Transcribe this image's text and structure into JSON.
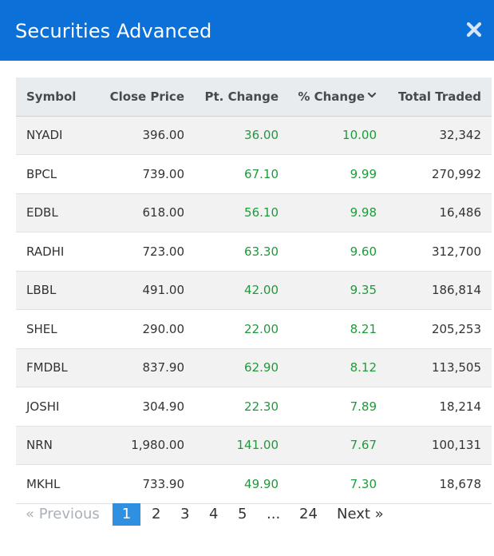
{
  "modal": {
    "title": "Securities Advanced",
    "close_icon": "close-icon"
  },
  "table": {
    "columns": {
      "symbol": "Symbol",
      "close_price": "Close Price",
      "pt_change": "Pt. Change",
      "pct_change": "% Change",
      "total_traded": "Total Traded"
    },
    "sort": {
      "column": "pct_change",
      "direction": "descending",
      "icon": "chevron-down-icon"
    },
    "rows": [
      {
        "symbol": "NYADI",
        "close_price": "396.00",
        "pt_change": "36.00",
        "pct_change": "10.00",
        "total_traded": "32,342"
      },
      {
        "symbol": "BPCL",
        "close_price": "739.00",
        "pt_change": "67.10",
        "pct_change": "9.99",
        "total_traded": "270,992"
      },
      {
        "symbol": "EDBL",
        "close_price": "618.00",
        "pt_change": "56.10",
        "pct_change": "9.98",
        "total_traded": "16,486"
      },
      {
        "symbol": "RADHI",
        "close_price": "723.00",
        "pt_change": "63.30",
        "pct_change": "9.60",
        "total_traded": "312,700"
      },
      {
        "symbol": "LBBL",
        "close_price": "491.00",
        "pt_change": "42.00",
        "pct_change": "9.35",
        "total_traded": "186,814"
      },
      {
        "symbol": "SHEL",
        "close_price": "290.00",
        "pt_change": "22.00",
        "pct_change": "8.21",
        "total_traded": "205,253"
      },
      {
        "symbol": "FMDBL",
        "close_price": "837.90",
        "pt_change": "62.90",
        "pct_change": "8.12",
        "total_traded": "113,505"
      },
      {
        "symbol": "JOSHI",
        "close_price": "304.90",
        "pt_change": "22.30",
        "pct_change": "7.89",
        "total_traded": "18,214"
      },
      {
        "symbol": "NRN",
        "close_price": "1,980.00",
        "pt_change": "141.00",
        "pct_change": "7.67",
        "total_traded": "100,131"
      },
      {
        "symbol": "MKHL",
        "close_price": "733.90",
        "pt_change": "49.90",
        "pct_change": "7.30",
        "total_traded": "18,678"
      }
    ]
  },
  "pagination": {
    "previous": "« Previous",
    "pages": [
      "1",
      "2",
      "3",
      "4",
      "5"
    ],
    "ellipsis": "...",
    "last": "24",
    "next": "Next »",
    "current": "1"
  },
  "colors": {
    "header_bg": "#0b71d9",
    "positive": "#1f9a3a",
    "active_page": "#2f8fe0",
    "table_header_bg": "#e9ecef",
    "striped_row_bg": "#f2f2f2"
  }
}
